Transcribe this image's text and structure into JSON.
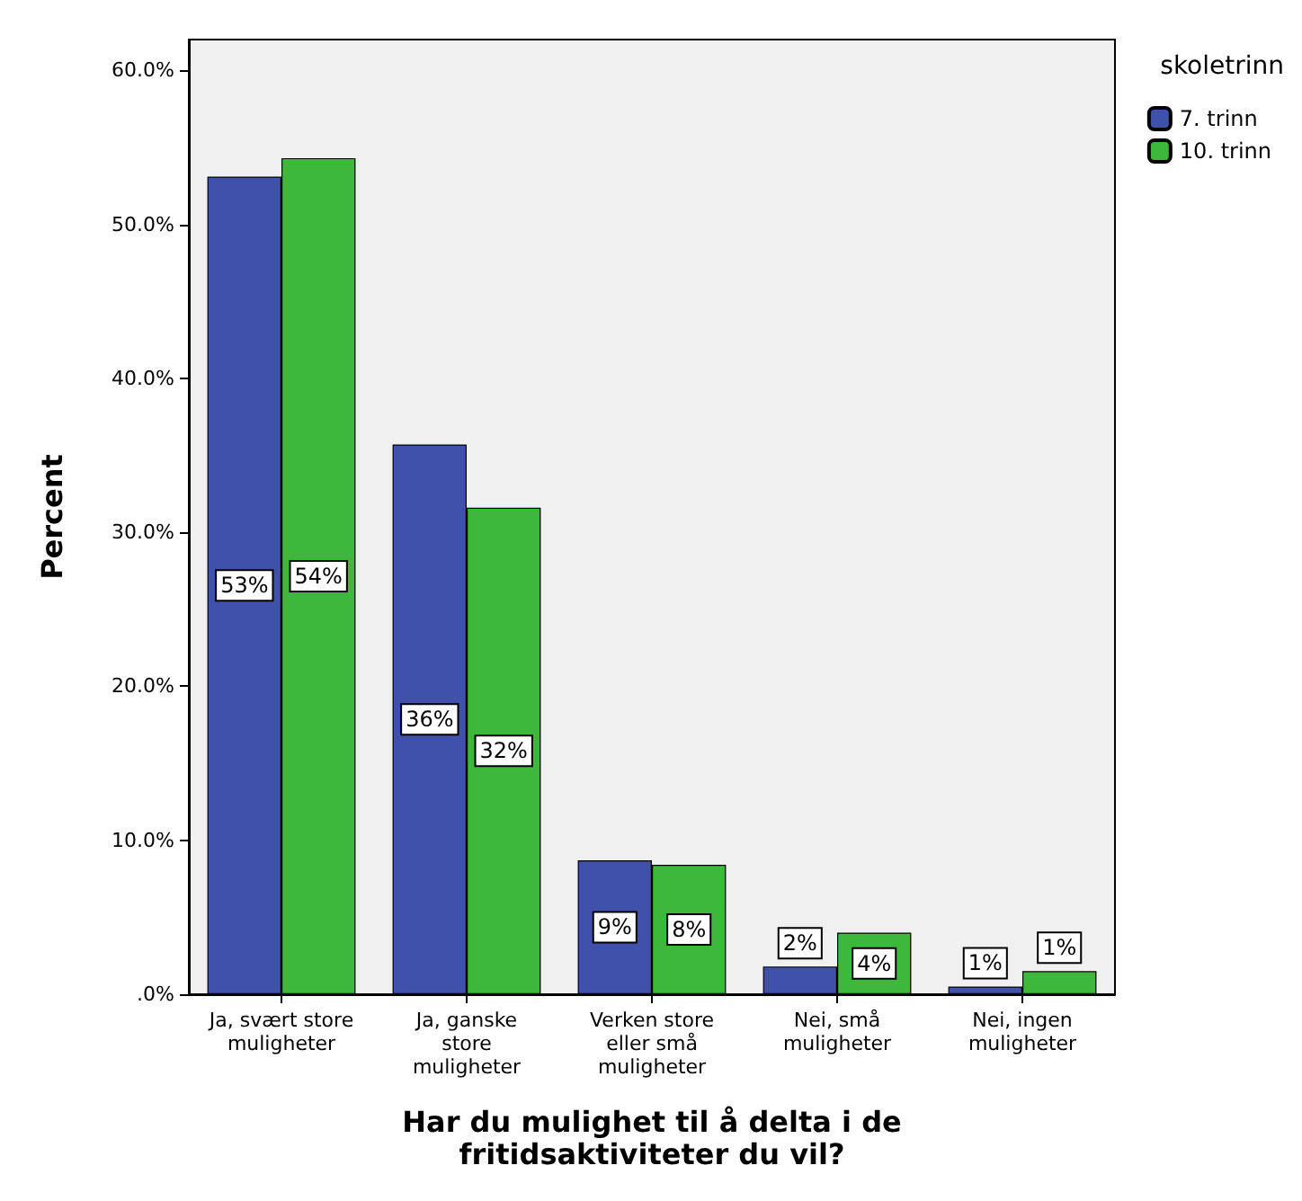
{
  "chart_data": {
    "type": "bar",
    "xlabel": "Har du mulighet til å delta i de\nfritidsaktiviteter du vil?",
    "ylabel": "Percent",
    "legend_title": "skoletrinn",
    "legend": "top right",
    "categories": [
      "Ja, svært store\nmuligheter",
      "Ja, ganske\nstore\nmuligheter",
      "Verken store\neller små\nmuligheter",
      "Nei, små\nmuligheter",
      "Nei, ingen\nmuligheter"
    ],
    "series": [
      {
        "name": "7. trinn",
        "color": "#3f51a8",
        "values": [
          53.1,
          35.7,
          8.7,
          1.8,
          0.5
        ],
        "value_labels": [
          "53%",
          "36%",
          "9%",
          "2%",
          "1%"
        ]
      },
      {
        "name": "10. trinn",
        "color": "#3db83d",
        "values": [
          54.3,
          31.6,
          8.4,
          4.0,
          1.5
        ],
        "value_labels": [
          "54%",
          "32%",
          "8%",
          "4%",
          "1%"
        ]
      }
    ],
    "ylim": [
      0,
      62
    ],
    "yticks": [
      {
        "value": 0,
        "label": ".0%"
      },
      {
        "value": 10,
        "label": "10.0%"
      },
      {
        "value": 20,
        "label": "20.0%"
      },
      {
        "value": 30,
        "label": "30.0%"
      },
      {
        "value": 40,
        "label": "40.0%"
      },
      {
        "value": 50,
        "label": "50.0%"
      },
      {
        "value": 60,
        "label": "60.0%"
      }
    ],
    "grid": false
  }
}
